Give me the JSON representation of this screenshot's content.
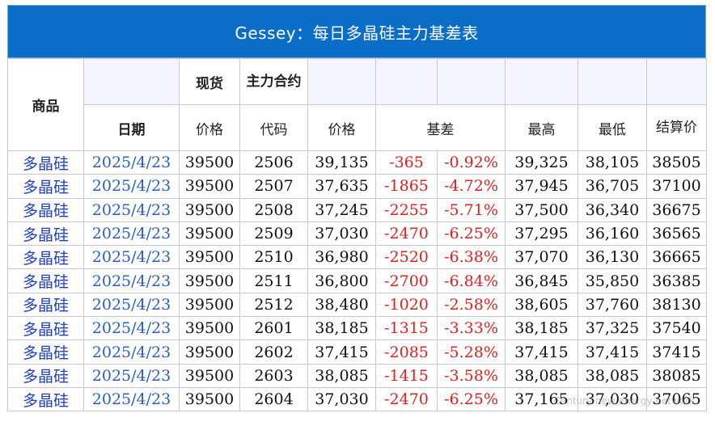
{
  "title": "Gessey：每日多晶硅主力基差表",
  "header_top": {
    "product": "商品",
    "spot": "现货",
    "main_contract": "主力合约"
  },
  "header_sub": {
    "date": "日期",
    "spot_price": "价格",
    "code": "代码",
    "price": "价格",
    "basis": "基差",
    "high": "最高",
    "low": "最低",
    "settle": "结算价"
  },
  "rows": [
    {
      "product": "多晶硅",
      "date": "2025/4/23",
      "spot": "39500",
      "code": "2506",
      "price": "39,135",
      "basis": "-365",
      "basis_pct": "-0.92%",
      "high": "39,325",
      "low": "38,105",
      "settle": "38505"
    },
    {
      "product": "多晶硅",
      "date": "2025/4/23",
      "spot": "39500",
      "code": "2507",
      "price": "37,635",
      "basis": "-1865",
      "basis_pct": "-4.72%",
      "high": "37,945",
      "low": "36,705",
      "settle": "37100"
    },
    {
      "product": "多晶硅",
      "date": "2025/4/23",
      "spot": "39500",
      "code": "2508",
      "price": "37,245",
      "basis": "-2255",
      "basis_pct": "-5.71%",
      "high": "37,500",
      "low": "36,340",
      "settle": "36675"
    },
    {
      "product": "多晶硅",
      "date": "2025/4/23",
      "spot": "39500",
      "code": "2509",
      "price": "37,030",
      "basis": "-2470",
      "basis_pct": "-6.25%",
      "high": "37,295",
      "low": "36,160",
      "settle": "36565"
    },
    {
      "product": "多晶硅",
      "date": "2025/4/23",
      "spot": "39500",
      "code": "2510",
      "price": "36,980",
      "basis": "-2520",
      "basis_pct": "-6.38%",
      "high": "37,070",
      "low": "36,130",
      "settle": "36665"
    },
    {
      "product": "多晶硅",
      "date": "2025/4/23",
      "spot": "39500",
      "code": "2511",
      "price": "36,800",
      "basis": "-2700",
      "basis_pct": "-6.84%",
      "high": "36,845",
      "low": "35,850",
      "settle": "36385"
    },
    {
      "product": "多晶硅",
      "date": "2025/4/23",
      "spot": "39500",
      "code": "2512",
      "price": "38,480",
      "basis": "-1020",
      "basis_pct": "-2.58%",
      "high": "38,605",
      "low": "37,760",
      "settle": "38130"
    },
    {
      "product": "多晶硅",
      "date": "2025/4/23",
      "spot": "39500",
      "code": "2601",
      "price": "38,185",
      "basis": "-1315",
      "basis_pct": "-3.33%",
      "high": "38,185",
      "low": "37,325",
      "settle": "37540"
    },
    {
      "product": "多晶硅",
      "date": "2025/4/23",
      "spot": "39500",
      "code": "2602",
      "price": "37,415",
      "basis": "-2085",
      "basis_pct": "-5.28%",
      "high": "37,415",
      "low": "37,415",
      "settle": "37415"
    },
    {
      "product": "多晶硅",
      "date": "2025/4/23",
      "spot": "39500",
      "code": "2603",
      "price": "38,085",
      "basis": "-1415",
      "basis_pct": "-3.58%",
      "high": "38,085",
      "low": "38,085",
      "settle": "38085"
    },
    {
      "product": "多晶硅",
      "date": "2025/4/23",
      "spot": "39500",
      "code": "2604",
      "price": "37,030",
      "basis": "-2470",
      "basis_pct": "-6.25%",
      "high": "37,165",
      "low": "37,030",
      "settle": "37065"
    }
  ],
  "watermark": "Century new energy network",
  "colors": {
    "title_bg": "#0a6ec8",
    "product_text": "#1f3fbf",
    "date_text": "#2a5fc0",
    "negative_text": "#e02020"
  }
}
